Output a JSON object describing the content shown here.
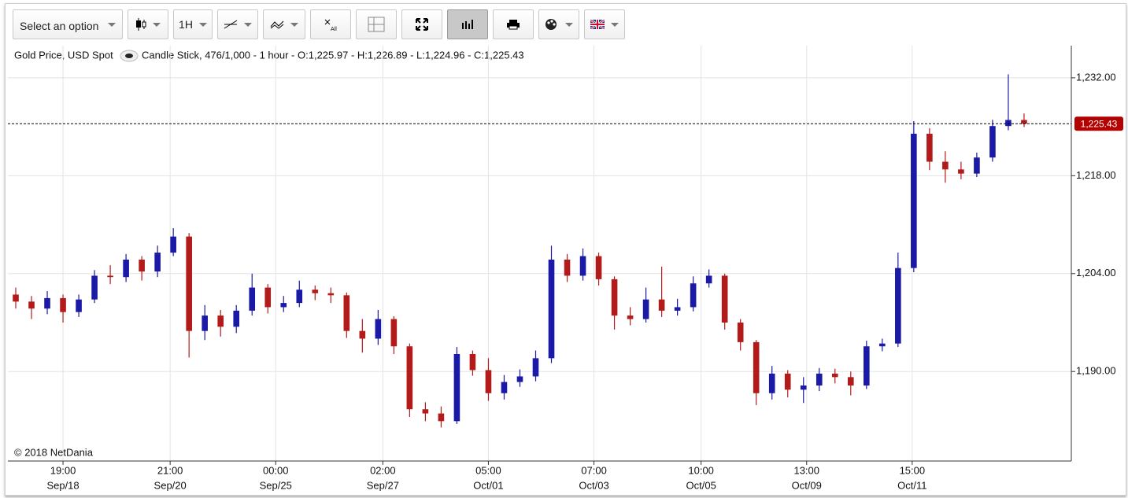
{
  "toolbar": {
    "select": "Select an option",
    "interval": "1H"
  },
  "chart_data": {
    "type": "candlestick",
    "title": "Gold Price, USD Spot",
    "subtitle": "Candle Stick, 476/1,000 - 1 hour - O:1,225.97 - H:1,226.89 - L:1,224.96 - C:1,225.43",
    "copyright": "© 2018 NetDania",
    "up_color": "#1a1aa6",
    "down_color": "#b31b1b",
    "grid": true,
    "xlim": [
      -0.5,
      67
    ],
    "ylim": [
      1177.2,
      1236.6
    ],
    "xticks": [
      {
        "value": 3,
        "label": "19:00"
      },
      {
        "value": 9.8,
        "label": "21:00"
      },
      {
        "value": 16.5,
        "label": "00:00"
      },
      {
        "value": 23.3,
        "label": "02:00"
      },
      {
        "value": 30,
        "label": "05:00"
      },
      {
        "value": 36.7,
        "label": "07:00"
      },
      {
        "value": 43.5,
        "label": "10:00"
      },
      {
        "value": 50.2,
        "label": "13:00"
      },
      {
        "value": 56.9,
        "label": "15:00"
      }
    ],
    "xtick_dates": [
      "Sep/18",
      "Sep/20",
      "Sep/25",
      "Sep/27",
      "Oct/01",
      "Oct/03",
      "Oct/05",
      "Oct/09",
      "Oct/11"
    ],
    "yticks": [
      {
        "value": 1190,
        "label": "1,190.00"
      },
      {
        "value": 1204,
        "label": "1,204.00"
      },
      {
        "value": 1218,
        "label": "1,218.00"
      },
      {
        "value": 1232,
        "label": "1,232.00"
      }
    ],
    "last_price": {
      "value": 1225.43,
      "label": "1,225.43"
    },
    "open": [
      1201.0,
      1200.0,
      1199.0,
      1200.5,
      1198.5,
      1200.3,
      1203.7,
      1203.5,
      1206.0,
      1204.3,
      1207.0,
      1209.3,
      1195.8,
      1198.0,
      1196.4,
      1198.7,
      1202.0,
      1199.2,
      1199.8,
      1201.7,
      1201.2,
      1200.9,
      1195.8,
      1194.7,
      1197.5,
      1193.6,
      1184.6,
      1184.0,
      1182.9,
      1192.5,
      1190.2,
      1186.9,
      1188.5,
      1189.3,
      1191.9,
      1206.0,
      1203.7,
      1206.5,
      1203.2,
      1198.0,
      1197.5,
      1200.3,
      1198.7,
      1199.2,
      1202.6,
      1203.7,
      1197.0,
      1194.2,
      1186.9,
      1189.7,
      1187.4,
      1188.0,
      1189.7,
      1189.2,
      1188.0,
      1193.6,
      1194.0,
      1204.8,
      1224.0,
      1220.0,
      1218.9,
      1218.3,
      1220.6,
      1225.1,
      1225.97
    ],
    "high": [
      1202.0,
      1200.8,
      1201.5,
      1201.0,
      1201.0,
      1204.5,
      1205.2,
      1206.8,
      1206.5,
      1208.0,
      1210.5,
      1209.8,
      1199.5,
      1198.8,
      1199.5,
      1204.0,
      1202.5,
      1200.8,
      1203.0,
      1202.3,
      1202.0,
      1201.3,
      1197.5,
      1198.8,
      1197.9,
      1194.0,
      1185.6,
      1185.0,
      1193.5,
      1193.0,
      1191.9,
      1189.5,
      1190.3,
      1193.0,
      1208.0,
      1206.8,
      1207.6,
      1207.0,
      1203.6,
      1199.2,
      1202.0,
      1205.0,
      1200.4,
      1203.6,
      1204.6,
      1204.0,
      1197.5,
      1194.5,
      1190.8,
      1190.2,
      1189.2,
      1190.5,
      1190.4,
      1190.0,
      1194.4,
      1194.7,
      1207.0,
      1225.8,
      1224.8,
      1221.5,
      1220.0,
      1221.3,
      1226.0,
      1232.5,
      1226.89
    ],
    "low": [
      1199.0,
      1197.5,
      1198.2,
      1197.0,
      1197.8,
      1199.8,
      1202.5,
      1202.8,
      1203.0,
      1203.5,
      1206.5,
      1192.0,
      1194.5,
      1195.0,
      1195.5,
      1198.0,
      1198.3,
      1198.5,
      1199.2,
      1200.2,
      1199.8,
      1194.8,
      1192.7,
      1193.8,
      1192.5,
      1183.5,
      1182.9,
      1182.0,
      1182.5,
      1189.4,
      1185.8,
      1186.0,
      1187.8,
      1188.6,
      1191.2,
      1202.8,
      1203.0,
      1202.3,
      1196.0,
      1196.6,
      1197.0,
      1197.8,
      1198.0,
      1198.6,
      1202.0,
      1196.0,
      1193.0,
      1185.2,
      1186.0,
      1186.3,
      1185.5,
      1187.2,
      1188.3,
      1186.6,
      1187.5,
      1192.9,
      1193.5,
      1204.2,
      1218.8,
      1217.0,
      1217.5,
      1217.8,
      1220.0,
      1224.5,
      1224.96
    ],
    "close": [
      1200.0,
      1199.0,
      1200.5,
      1198.5,
      1200.3,
      1203.7,
      1203.5,
      1206.0,
      1204.3,
      1207.0,
      1209.3,
      1195.8,
      1198.0,
      1196.4,
      1198.7,
      1202.0,
      1199.2,
      1199.8,
      1201.7,
      1201.2,
      1200.9,
      1195.8,
      1194.7,
      1197.5,
      1193.6,
      1184.6,
      1184.0,
      1182.9,
      1192.5,
      1190.2,
      1186.9,
      1188.5,
      1189.3,
      1191.9,
      1206.0,
      1203.7,
      1206.5,
      1203.2,
      1198.0,
      1197.5,
      1200.3,
      1198.7,
      1199.2,
      1202.6,
      1203.7,
      1197.0,
      1194.2,
      1186.9,
      1189.7,
      1187.4,
      1188.0,
      1189.7,
      1189.2,
      1188.0,
      1193.6,
      1194.0,
      1204.8,
      1224.0,
      1220.0,
      1218.9,
      1218.3,
      1220.6,
      1225.1,
      1225.97,
      1225.43
    ]
  }
}
